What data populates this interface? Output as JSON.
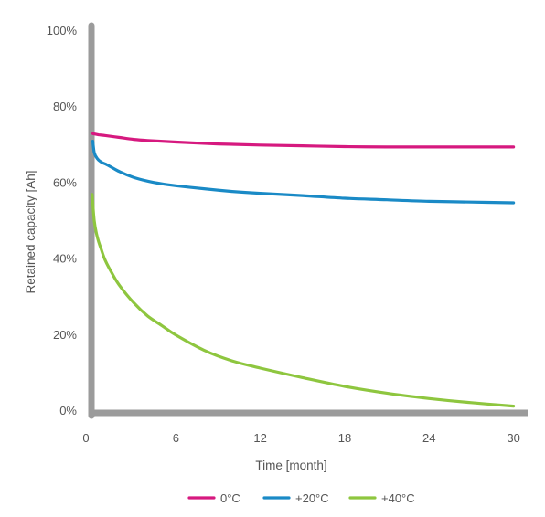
{
  "chart_data": {
    "type": "line",
    "title": "",
    "xlabel": "Time [month]",
    "ylabel": "Retained capacity [Ah]",
    "xlim": [
      0,
      31
    ],
    "ylim": [
      0,
      100
    ],
    "x_ticks": [
      0,
      6,
      12,
      18,
      24,
      30
    ],
    "x_tick_labels": [
      "0",
      "6",
      "12",
      "18",
      "24",
      "30"
    ],
    "y_ticks": [
      0,
      20,
      40,
      60,
      80,
      100
    ],
    "y_tick_labels": [
      "0%",
      "20%",
      "40%",
      "60%",
      "80%",
      "100%"
    ],
    "grid": false,
    "legend_position": "bottom",
    "series": [
      {
        "name": "0°C",
        "color": "#d6197f",
        "points": [
          [
            0.1,
            73
          ],
          [
            0.5,
            72.7
          ],
          [
            1,
            72.5
          ],
          [
            2,
            72
          ],
          [
            3,
            71.5
          ],
          [
            4,
            71.2
          ],
          [
            6,
            70.8
          ],
          [
            9,
            70.3
          ],
          [
            12,
            70
          ],
          [
            15,
            69.8
          ],
          [
            18,
            69.6
          ],
          [
            21,
            69.5
          ],
          [
            24,
            69.5
          ],
          [
            27,
            69.5
          ],
          [
            30,
            69.5
          ]
        ]
      },
      {
        "name": "+20°C",
        "color": "#1a8ac6",
        "points": [
          [
            0.1,
            71
          ],
          [
            0.2,
            68
          ],
          [
            0.4,
            66.5
          ],
          [
            0.7,
            65.5
          ],
          [
            1,
            65
          ],
          [
            1.5,
            64
          ],
          [
            2,
            63
          ],
          [
            3,
            61.5
          ],
          [
            4,
            60.5
          ],
          [
            5,
            59.8
          ],
          [
            6,
            59.3
          ],
          [
            8,
            58.5
          ],
          [
            10,
            57.8
          ],
          [
            12,
            57.3
          ],
          [
            15,
            56.7
          ],
          [
            18,
            56
          ],
          [
            21,
            55.6
          ],
          [
            24,
            55.2
          ],
          [
            27,
            55
          ],
          [
            30,
            54.8
          ]
        ]
      },
      {
        "name": "+40°C",
        "color": "#8ec63f",
        "points": [
          [
            0.05,
            57
          ],
          [
            0.2,
            50
          ],
          [
            0.4,
            46
          ],
          [
            0.7,
            42.5
          ],
          [
            1,
            39.5
          ],
          [
            1.5,
            36
          ],
          [
            2,
            33
          ],
          [
            3,
            28.5
          ],
          [
            4,
            25
          ],
          [
            5,
            22.5
          ],
          [
            6,
            20
          ],
          [
            8,
            16
          ],
          [
            10,
            13.2
          ],
          [
            12,
            11.3
          ],
          [
            15,
            8.8
          ],
          [
            18,
            6.5
          ],
          [
            21,
            4.7
          ],
          [
            24,
            3.3
          ],
          [
            27,
            2.2
          ],
          [
            30,
            1.3
          ]
        ]
      }
    ]
  }
}
